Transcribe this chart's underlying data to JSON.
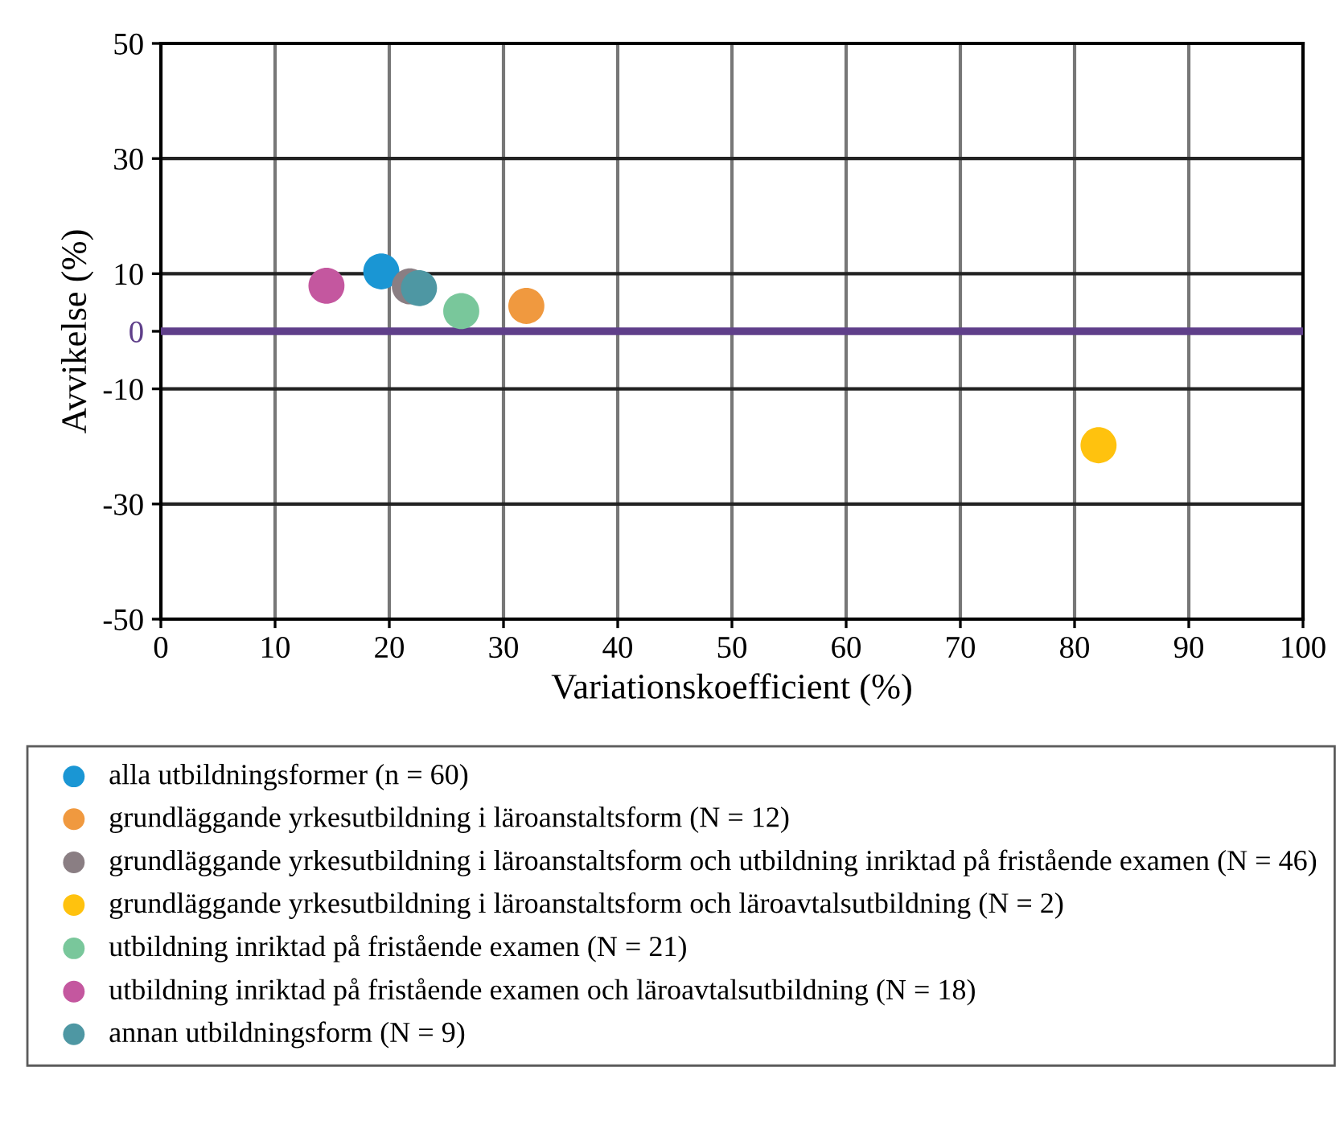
{
  "chart_data": {
    "type": "scatter",
    "xlabel": "Variationskoefficient (%)",
    "ylabel": "Avvikelse (%)",
    "xlim": [
      0,
      100
    ],
    "xticks": [
      0,
      10,
      20,
      30,
      40,
      50,
      60,
      70,
      80,
      90,
      100
    ],
    "ylim": [
      -50,
      50
    ],
    "yticks": [
      -50,
      -30,
      -10,
      0,
      10,
      30,
      50
    ],
    "grid": true,
    "legend": "bottom",
    "marker": "circle",
    "ref_lines": [
      {
        "axis": "y",
        "value": 0,
        "color": "#5f3f8a"
      }
    ],
    "series": [
      {
        "name": "alla utbildningsformer (n = 60)",
        "color": "#1a96d4",
        "x": [
          19.3
        ],
        "values": [
          10.4
        ]
      },
      {
        "name": "grundläggande yrkesutbildning i läroanstaltsform (N = 12)",
        "color": "#f0993f",
        "x": [
          32.0
        ],
        "values": [
          4.4
        ]
      },
      {
        "name": "grundläggande yrkesutbildning i läroanstaltsform och utbildning inriktad på fristående examen (N = 46)",
        "color": "#8a7e83",
        "x": [
          21.8
        ],
        "values": [
          7.8
        ]
      },
      {
        "name": "grundläggande yrkesutbildning i läroanstaltsform och läroavtalsutbildning (N = 2)",
        "color": "#ffc20e",
        "x": [
          82.1
        ],
        "values": [
          -19.8
        ]
      },
      {
        "name": "utbildning inriktad på fristående examen (N = 21)",
        "color": "#79c79b",
        "x": [
          26.3
        ],
        "values": [
          3.5
        ]
      },
      {
        "name": "utbildning inriktad på fristående examen och läroavtalsutbildning (N = 18)",
        "color": "#c4579f",
        "x": [
          14.5
        ],
        "values": [
          7.9
        ]
      },
      {
        "name": "annan utbildningsform (N = 9)",
        "color": "#4e97a3",
        "x": [
          22.6
        ],
        "values": [
          7.5
        ]
      }
    ]
  }
}
